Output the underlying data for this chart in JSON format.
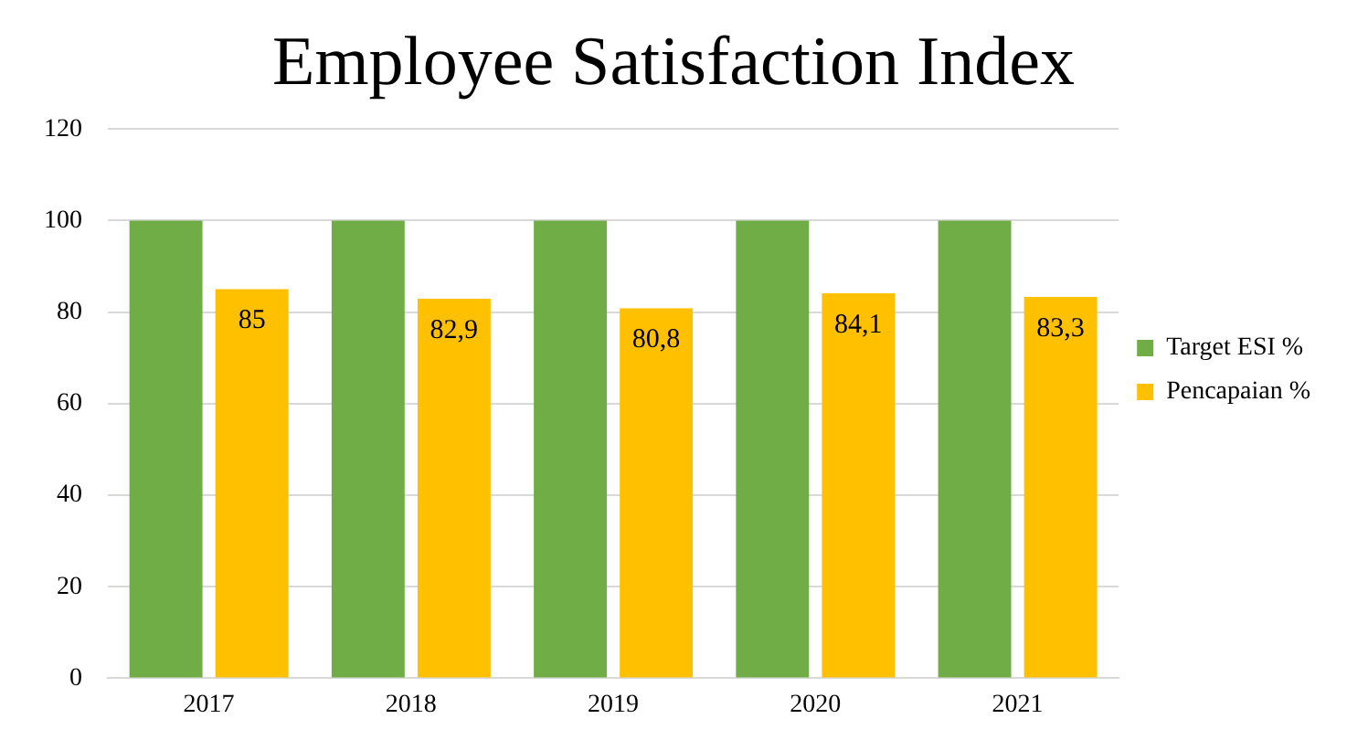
{
  "chart_data": {
    "type": "bar",
    "title": "Employee Satisfaction Index",
    "categories": [
      "2017",
      "2018",
      "2019",
      "2020",
      "2021"
    ],
    "series": [
      {
        "name": "Target ESI %",
        "color": "#70ad47",
        "values": [
          100,
          100,
          100,
          100,
          100
        ]
      },
      {
        "name": "Pencapaian %",
        "color": "#ffc000",
        "values": [
          85,
          82.9,
          80.8,
          84.1,
          83.3
        ],
        "value_labels": [
          "85",
          "82,9",
          "80,8",
          "84,1",
          "83,3"
        ]
      }
    ],
    "ylim": [
      0,
      120
    ],
    "yticks": [
      0,
      20,
      40,
      60,
      80,
      100,
      120
    ],
    "grid": "y",
    "legend": "right"
  }
}
